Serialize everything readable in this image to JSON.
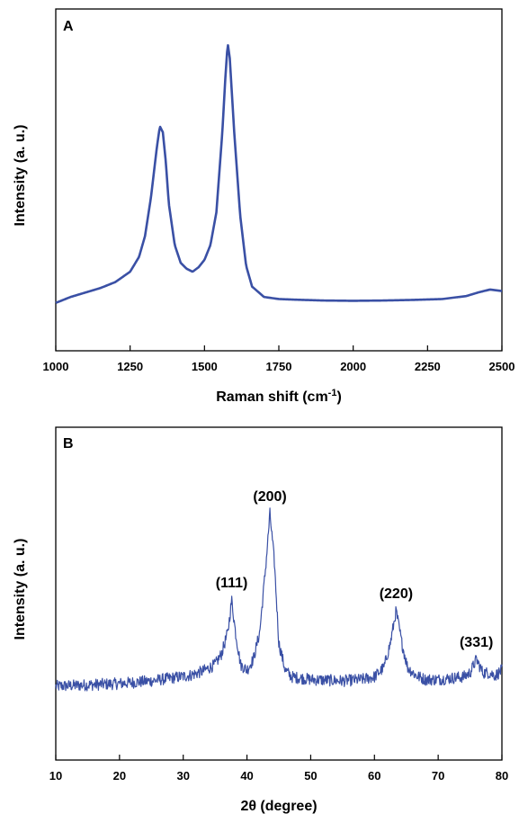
{
  "chart_data": [
    {
      "panel": "A",
      "type": "line",
      "title": "",
      "xlabel": "Raman shift (cm⁻¹)",
      "ylabel": "Intensity (a. u.)",
      "xlim": [
        1000,
        2500
      ],
      "ylim": [
        0,
        100
      ],
      "xticks": [
        1000,
        1250,
        1500,
        1750,
        2000,
        2250,
        2500
      ],
      "x_tick_labels": [
        "1000",
        "1250",
        "1500",
        "1750",
        "2000",
        "2250",
        "2500"
      ],
      "grid": false,
      "color": "#3a50a5",
      "series": [
        {
          "x": [
            1000,
            1050,
            1100,
            1150,
            1200,
            1250,
            1280,
            1300,
            1320,
            1340,
            1350,
            1360,
            1370,
            1380,
            1400,
            1420,
            1440,
            1460,
            1480,
            1500,
            1520,
            1540,
            1560,
            1570,
            1578,
            1585,
            1600,
            1620,
            1640,
            1660,
            1700,
            1750,
            1800,
            1900,
            2000,
            2100,
            2200,
            2300,
            2380,
            2420,
            2460,
            2500
          ],
          "y": [
            12.5,
            14.5,
            16,
            17.5,
            19.5,
            23,
            28,
            35,
            48,
            65,
            72,
            70,
            60,
            46,
            32,
            26,
            24,
            23,
            24.5,
            27,
            32,
            43,
            70,
            88,
            100,
            95,
            70,
            42,
            25,
            18,
            14.5,
            13.8,
            13.6,
            13.3,
            13.2,
            13.3,
            13.5,
            13.8,
            14.8,
            16,
            17,
            16.5
          ]
        }
      ]
    },
    {
      "panel": "B",
      "type": "line",
      "title": "",
      "xlabel": "2θ (degree)",
      "ylabel": "Intensity (a. u.)",
      "xlim": [
        10,
        80
      ],
      "ylim": [
        0,
        100
      ],
      "xticks": [
        10,
        20,
        30,
        40,
        50,
        60,
        70,
        80
      ],
      "x_tick_labels": [
        "10",
        "20",
        "30",
        "40",
        "50",
        "60",
        "70",
        "80"
      ],
      "grid": false,
      "color": "#3a50a5",
      "series": [
        {
          "x": [
            10,
            15,
            20,
            25,
            28,
            31,
            33,
            35,
            36,
            37,
            37.6,
            38.2,
            39,
            40,
            41,
            42,
            43,
            43.6,
            44.3,
            45,
            46,
            47,
            50,
            55,
            58,
            60,
            61.5,
            62.5,
            63.4,
            64.3,
            65.2,
            66.5,
            68,
            70,
            72,
            74,
            75,
            76,
            77,
            78,
            79,
            80
          ],
          "y": [
            14,
            14.5,
            15,
            16,
            17,
            18,
            19.5,
            22,
            26,
            34,
            46,
            34,
            22,
            20,
            24,
            34,
            60,
            78,
            60,
            30,
            20,
            17.5,
            16.5,
            16,
            16.5,
            17.5,
            21,
            30,
            42,
            30,
            21,
            18,
            16.5,
            16.5,
            17,
            17.5,
            19,
            24,
            19,
            19,
            18,
            20
          ]
        }
      ],
      "annotations": [
        {
          "text": "(111)",
          "x": 37.6,
          "y": 46
        },
        {
          "text": "(200)",
          "x": 43.6,
          "y": 78
        },
        {
          "text": "(220)",
          "x": 63.4,
          "y": 42
        },
        {
          "text": "(331)",
          "x": 76,
          "y": 24
        }
      ]
    }
  ],
  "panels": {
    "a_label": "A",
    "b_label": "B",
    "a_xlabel_main": "Raman shift (cm",
    "a_xlabel_sup": "-1",
    "a_xlabel_end": ")",
    "a_ylabel": "Intensity (a. u.)",
    "b_xlabel": "2θ (degree)",
    "b_ylabel": "Intensity (a. u.)"
  }
}
